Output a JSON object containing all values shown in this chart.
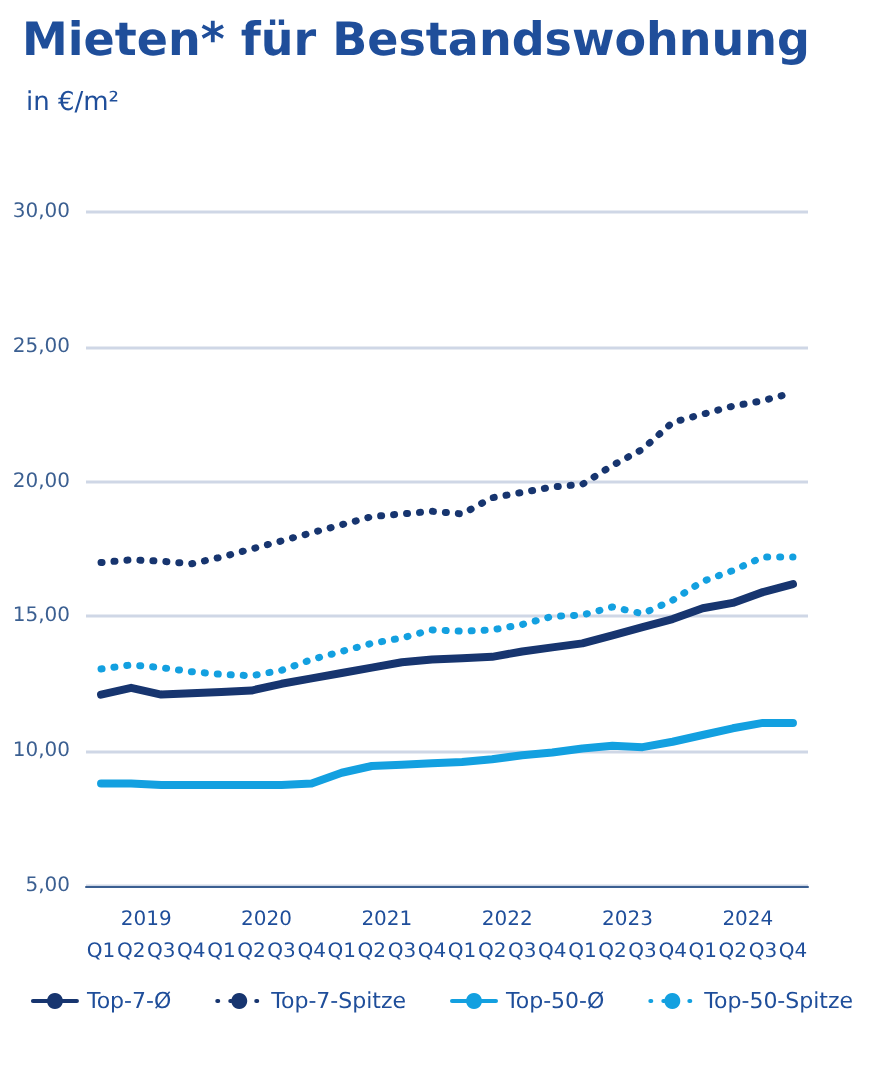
{
  "chart_data": {
    "type": "line",
    "title": "Mieten* für Bestandswohnung",
    "subtitle": "in €/m²",
    "categories": [
      "Q1",
      "Q2",
      "Q3",
      "Q4",
      "Q1",
      "Q2",
      "Q3",
      "Q4",
      "Q1",
      "Q2",
      "Q3",
      "Q4",
      "Q1",
      "Q2",
      "Q3",
      "Q4",
      "Q1",
      "Q2",
      "Q3",
      "Q4",
      "Q1",
      "Q2",
      "Q3",
      "Q4"
    ],
    "annotations": [
      "2019",
      "2020",
      "2021",
      "2022",
      "2023",
      "2024"
    ],
    "ylim": [
      5,
      30
    ],
    "yticks": [
      {
        "value": 5,
        "label": "5,00"
      },
      {
        "value": 10,
        "label": "10,00"
      },
      {
        "value": 15,
        "label": "15,00"
      },
      {
        "value": 20,
        "label": "20,00"
      },
      {
        "value": 25,
        "label": "25,00"
      },
      {
        "value": 30,
        "label": "30,00"
      }
    ],
    "grid": "y",
    "legend": "bottom",
    "marker": "none",
    "series": [
      {
        "name": "Top-7-Ø",
        "color": "#17356f",
        "line_style": "solid",
        "values": [
          12.1,
          12.35,
          12.1,
          12.15,
          12.2,
          12.25,
          12.5,
          12.7,
          12.9,
          13.1,
          13.3,
          13.4,
          13.45,
          13.5,
          13.7,
          13.85,
          14.0,
          14.3,
          14.6,
          14.9,
          15.3,
          15.5,
          15.9,
          16.2
        ]
      },
      {
        "name": "Top-7-Spitze",
        "color": "#17356f",
        "line_style": "dotted",
        "values": [
          17.0,
          17.1,
          17.05,
          16.95,
          17.2,
          17.5,
          17.8,
          18.1,
          18.4,
          18.7,
          18.8,
          18.9,
          18.8,
          19.4,
          19.6,
          19.8,
          19.9,
          20.6,
          21.2,
          22.2,
          22.5,
          22.8,
          23.0,
          23.3
        ]
      },
      {
        "name": "Top-50-Ø",
        "color": "#13a0e0",
        "line_style": "solid",
        "values": [
          8.8,
          8.8,
          8.75,
          8.75,
          8.75,
          8.75,
          8.75,
          8.8,
          9.2,
          9.45,
          9.5,
          9.55,
          9.6,
          9.7,
          9.85,
          9.95,
          10.1,
          10.2,
          10.15,
          10.35,
          10.6,
          10.85,
          11.05,
          11.05
        ]
      },
      {
        "name": "Top-50-Spitze",
        "color": "#13a0e0",
        "line_style": "dotted",
        "values": [
          13.05,
          13.2,
          13.1,
          12.95,
          12.85,
          12.8,
          13.0,
          13.4,
          13.7,
          14.0,
          14.2,
          14.5,
          14.45,
          14.5,
          14.7,
          15.0,
          15.05,
          15.35,
          15.1,
          15.6,
          16.3,
          16.7,
          17.2,
          17.2
        ]
      }
    ]
  }
}
